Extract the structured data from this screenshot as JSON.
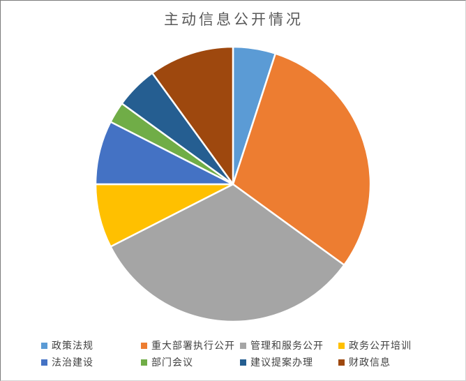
{
  "chart_data": {
    "type": "pie",
    "title": "主动信息公开情况",
    "title_color": "#595959",
    "legend_position": "bottom",
    "legend_text_color": "#404040",
    "background_color": "#ffffff",
    "slice_separator_color": "#ffffff",
    "start_angle_deg": 0,
    "direction": "clockwise",
    "data_labels_shown": false,
    "series": [
      {
        "name": "政策法规",
        "percent": 5,
        "color": "#5B9BD5"
      },
      {
        "name": "重大部署执行公开",
        "percent": 30,
        "color": "#ED7D31"
      },
      {
        "name": "管理和服务公开",
        "percent": 32.5,
        "color": "#A5A5A5"
      },
      {
        "name": "政务公开培训",
        "percent": 7.5,
        "color": "#FFC000"
      },
      {
        "name": "法治建设",
        "percent": 7.5,
        "color": "#4472C4"
      },
      {
        "name": "部门会议",
        "percent": 2.5,
        "color": "#70AD47"
      },
      {
        "name": "建议提案办理",
        "percent": 5,
        "color": "#255E91"
      },
      {
        "name": "财政信息",
        "percent": 10,
        "color": "#9E480E"
      }
    ]
  }
}
